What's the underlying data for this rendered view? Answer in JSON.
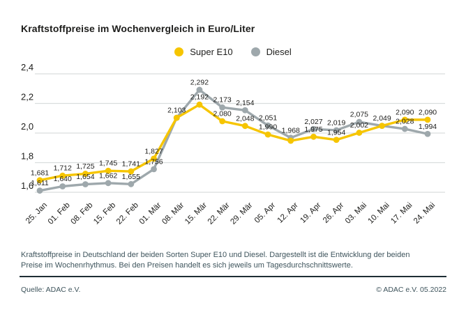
{
  "title": "Kraftstoffpreise im Wochenvergleich in Euro/Liter",
  "legend": [
    {
      "label": "Super E10",
      "color": "#F6C500"
    },
    {
      "label": "Diesel",
      "color": "#9EA8AC"
    }
  ],
  "chart_data": {
    "type": "line",
    "title": "Kraftstoffpreise im Wochenvergleich in Euro/Liter",
    "unit": "Euro/Liter",
    "categories": [
      "25. Jan",
      "01. Feb",
      "08. Feb",
      "15. Feb",
      "22. Feb",
      "01. Mär",
      "08. Mär",
      "15. Mär",
      "22. Mär",
      "29. Mär",
      "05. Apr",
      "12. Apr",
      "19. Apr",
      "26. Apr",
      "03. Mai",
      "10. Mai",
      "17. Mai",
      "24. Mai"
    ],
    "series": [
      {
        "name": "Diesel",
        "color": "#9EA8AC",
        "values": [
          1.611,
          1.64,
          1.654,
          1.662,
          1.655,
          1.756,
          2.103,
          2.292,
          2.173,
          2.154,
          2.051,
          1.968,
          2.027,
          2.019,
          2.075,
          2.049,
          2.028,
          1.994
        ],
        "labels": [
          "1,611",
          "1,640",
          "1,654",
          "1,662",
          "1,655",
          "1,756",
          "",
          "2,292",
          "2,173",
          "2,154",
          "2,051",
          "1,968",
          "2,027",
          "2,019",
          "2,075",
          "2,049",
          "2,028",
          "1,994"
        ]
      },
      {
        "name": "Super E10",
        "color": "#F6C500",
        "values": [
          1.681,
          1.712,
          1.725,
          1.745,
          1.741,
          1.827,
          2.103,
          2.192,
          2.08,
          2.048,
          1.99,
          1.948,
          1.975,
          1.954,
          2.002,
          2.049,
          2.09,
          2.09
        ],
        "labels": [
          "1,681",
          "1,712",
          "1,725",
          "1,745",
          "1,741",
          "1,827",
          "2,103",
          "2,192",
          "2,080",
          "2,048",
          "1,990",
          "",
          "1,975",
          "1,954",
          "2,002",
          "",
          "2,090",
          "2,090"
        ]
      }
    ],
    "yticks": [
      {
        "value": 2.4,
        "label": "2,4"
      },
      {
        "value": 2.2,
        "label": "2,2"
      },
      {
        "value": 2.0,
        "label": "2,0"
      },
      {
        "value": 1.8,
        "label": "1,8"
      },
      {
        "value": 1.6,
        "label": "1,6"
      }
    ],
    "ylim": [
      1.6,
      2.4
    ],
    "grid": true,
    "legend_position": "top-center"
  },
  "footnote": "Kraftstoffpreise in Deutschland der beiden Sorten Super E10 und Diesel. Dargestellt ist die Entwicklung der beiden Preise im Wochenrhythmus. Bei den Preisen handelt es sich jeweils um Tagesdurchschnittswerte.",
  "source": "Quelle: ADAC e.V.",
  "copyright": "© ADAC e.V. 05.2022",
  "colors": {
    "background": "#ffffff",
    "text": "#1d1d1b",
    "muted": "#3e545c",
    "divider": "#1e2d34",
    "grid": "#dadddd",
    "super_e10": "#F6C500",
    "diesel": "#9EA8AC"
  }
}
